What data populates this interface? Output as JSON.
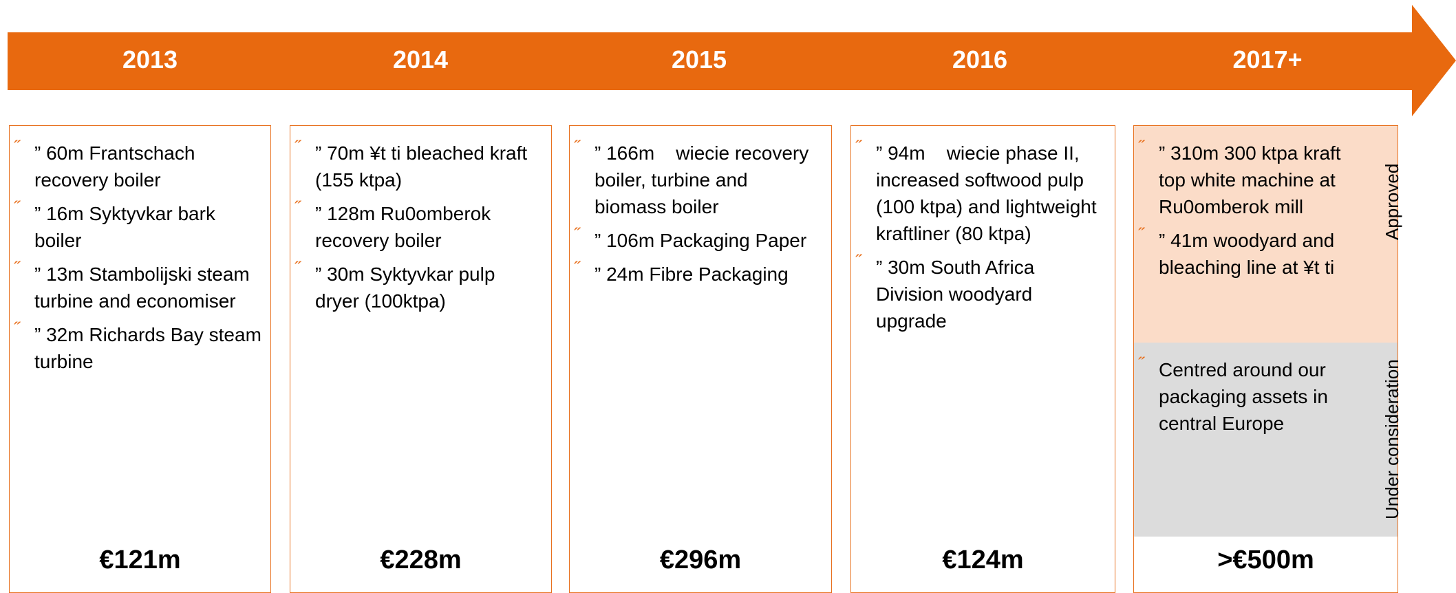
{
  "timeline": [
    {
      "year": "2013",
      "items": [
        "” 60m Frantschach recovery boiler",
        "” 16m Syktyvkar bark boiler",
        "” 13m Stambolijski steam turbine and economiser",
        "” 32m Richards Bay steam turbine"
      ],
      "total": "€121m"
    },
    {
      "year": "2014",
      "items": [
        "” 70m ¥t ti bleached kraft (155 ktpa)",
        "” 128m Ru0omberok recovery boiler",
        "” 30m Syktyvkar pulp dryer (100ktpa)"
      ],
      "total": "€228m"
    },
    {
      "year": "2015",
      "items": [
        "” 166m    wiecie recovery boiler, turbine and biomass boiler",
        "” 106m Packaging Paper",
        "” 24m Fibre Packaging"
      ],
      "total": "€296m"
    },
    {
      "year": "2016",
      "items": [
        "” 94m    wiecie phase II, increased softwood pulp (100 ktpa) and lightweight kraftliner (80 ktpa)",
        "” 30m South Africa Division woodyard upgrade"
      ],
      "total": "€124m"
    },
    {
      "year": "2017+",
      "sections": [
        {
          "label": "Approved",
          "items": [
            "” 310m 300 ktpa kraft top white machine at Ru0omberok mill",
            "” 41m woodyard and bleaching line at ¥t ti"
          ]
        },
        {
          "label": "Under consideration",
          "items": [
            "Centred around our packaging assets in central Europe"
          ]
        }
      ],
      "total": ">€500m"
    }
  ]
}
